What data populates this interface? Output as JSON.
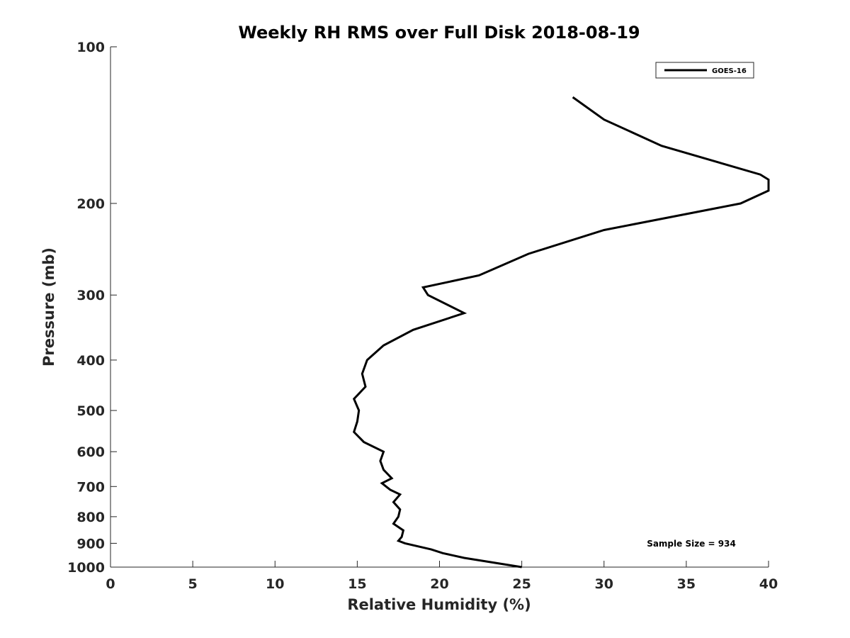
{
  "chart_data": {
    "type": "line",
    "title": "Weekly RH RMS over Full Disk 2018-08-19",
    "xlabel": "Relative Humidity (%)",
    "ylabel": "Pressure (mb)",
    "xlim": [
      0,
      40
    ],
    "ylim": [
      100,
      1000
    ],
    "yscale": "log",
    "yreversed": true,
    "xticks": [
      0,
      5,
      10,
      15,
      20,
      25,
      30,
      35,
      40
    ],
    "yticks": [
      100,
      200,
      300,
      400,
      500,
      600,
      700,
      800,
      900,
      1000
    ],
    "grid": false,
    "legend_position": "top-right",
    "annotation": "Sample Size = 934",
    "series": [
      {
        "name": "GOES-16",
        "color": "#000000",
        "points": [
          [
            28.1,
            125
          ],
          [
            30.0,
            138
          ],
          [
            33.5,
            155
          ],
          [
            39.5,
            176
          ],
          [
            40.0,
            180
          ],
          [
            40.0,
            189
          ],
          [
            38.3,
            200
          ],
          [
            30.0,
            225
          ],
          [
            25.4,
            250
          ],
          [
            22.4,
            275
          ],
          [
            19.0,
            290
          ],
          [
            19.3,
            300
          ],
          [
            21.5,
            325
          ],
          [
            18.4,
            350
          ],
          [
            16.6,
            375
          ],
          [
            15.6,
            400
          ],
          [
            15.3,
            425
          ],
          [
            15.5,
            450
          ],
          [
            14.8,
            475
          ],
          [
            15.1,
            500
          ],
          [
            15.0,
            525
          ],
          [
            14.8,
            550
          ],
          [
            15.4,
            575
          ],
          [
            16.6,
            600
          ],
          [
            16.4,
            625
          ],
          [
            16.6,
            650
          ],
          [
            17.1,
            675
          ],
          [
            16.5,
            690
          ],
          [
            17.0,
            710
          ],
          [
            17.6,
            725
          ],
          [
            17.2,
            750
          ],
          [
            17.6,
            775
          ],
          [
            17.5,
            800
          ],
          [
            17.2,
            825
          ],
          [
            17.8,
            850
          ],
          [
            17.7,
            875
          ],
          [
            17.5,
            890
          ],
          [
            17.9,
            900
          ],
          [
            19.5,
            925
          ],
          [
            20.2,
            940
          ],
          [
            21.5,
            960
          ],
          [
            25.0,
            1000
          ]
        ]
      }
    ]
  }
}
